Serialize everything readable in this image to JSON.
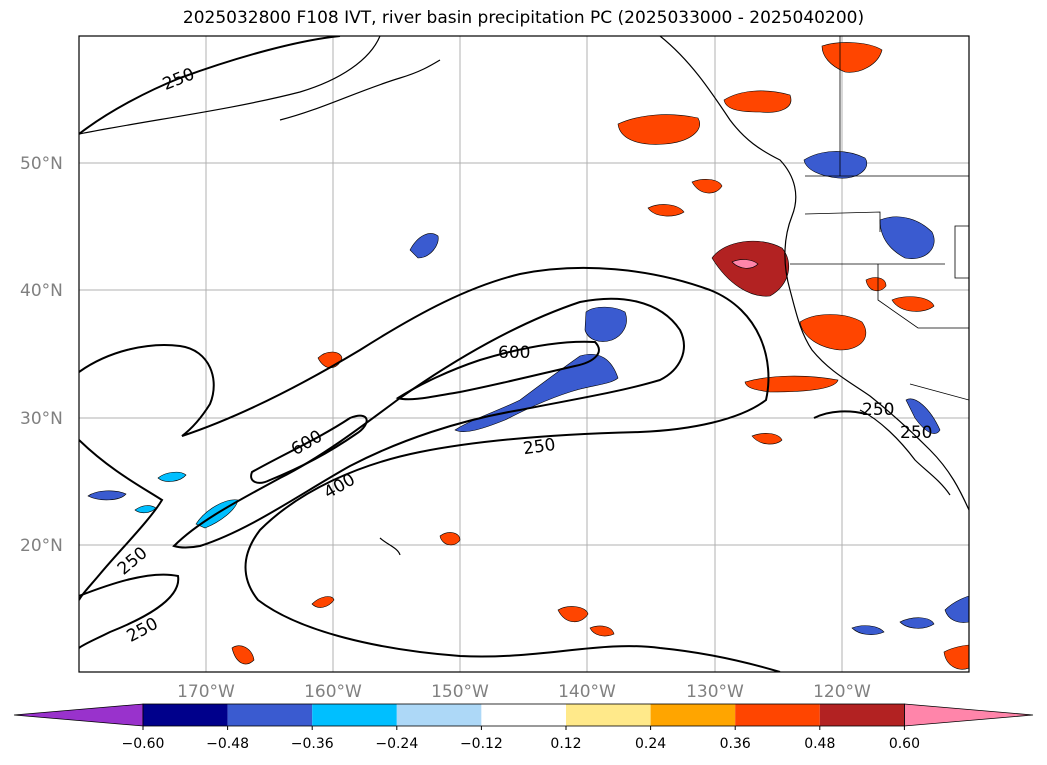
{
  "title": "2025032800 F108 IVT, river basin precipitation PC (2025033000 - 2025040200)",
  "map": {
    "lat_labels": [
      "50°N",
      "40°N",
      "30°N",
      "20°N"
    ],
    "lon_labels": [
      "170°W",
      "160°W",
      "150°W",
      "140°W",
      "130°W",
      "120°W"
    ],
    "contour_labels": [
      "250",
      "250",
      "250",
      "250",
      "250",
      "250",
      "600",
      "600",
      "400"
    ]
  },
  "colorbar": {
    "ticks": [
      "−0.60",
      "−0.48",
      "−0.36",
      "−0.24",
      "−0.12",
      "0.12",
      "0.24",
      "0.36",
      "0.48",
      "0.60"
    ],
    "colors": [
      "#9932cc",
      "#00008b",
      "#3a5bd0",
      "#00bfff",
      "#add8f7",
      "#ffffff",
      "#ffe98a",
      "#ffa500",
      "#ff4500",
      "#b22222",
      "#ff85aa"
    ]
  }
}
